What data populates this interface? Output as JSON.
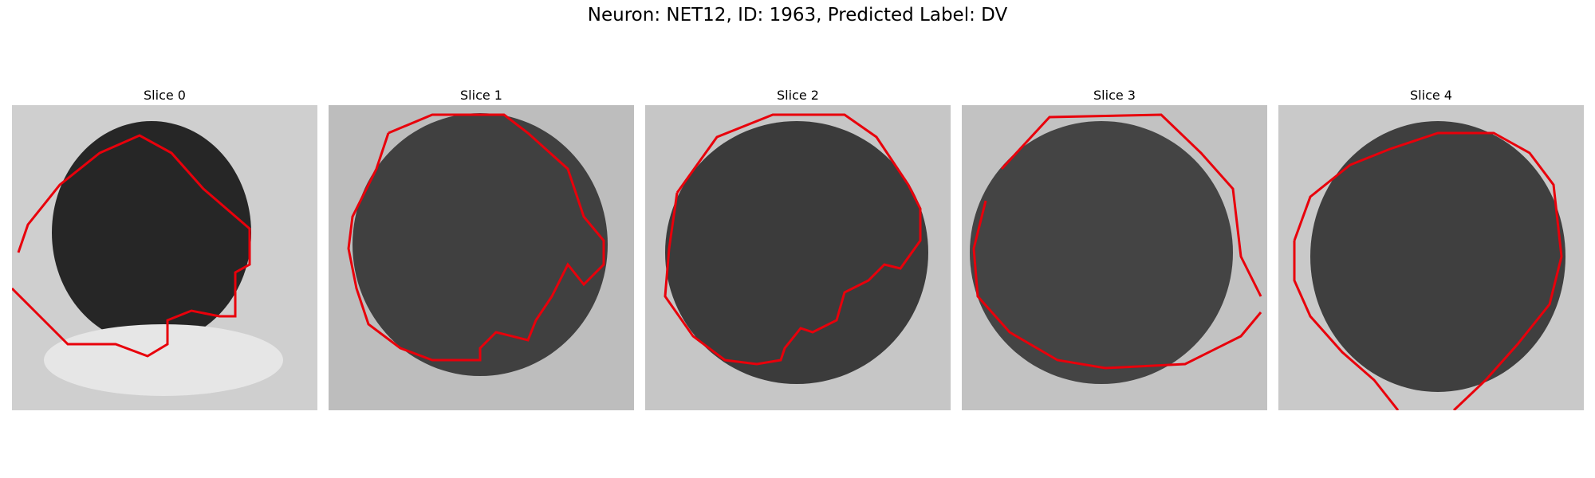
{
  "figure": {
    "title": "Neuron: NET12, ID: 1963, Predicted Label: DV"
  },
  "contour_color": "#e8000b",
  "panels": [
    {
      "title": "Slice 0"
    },
    {
      "title": "Slice 1"
    },
    {
      "title": "Slice 2"
    },
    {
      "title": "Slice 3"
    },
    {
      "title": "Slice 4"
    }
  ]
}
